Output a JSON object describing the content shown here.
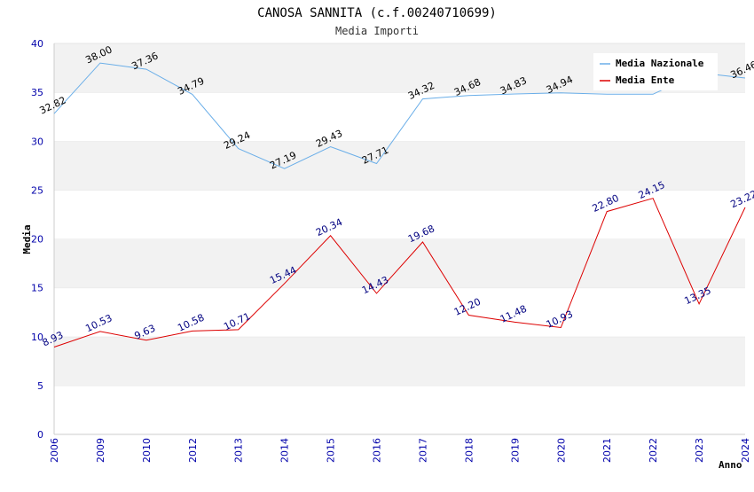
{
  "chart_data": {
    "type": "line",
    "title": "CANOSA SANNITA (c.f.00240710699)",
    "subtitle": "Media Importi",
    "xlabel": "Anno",
    "ylabel": "Media",
    "ylim": [
      0,
      40
    ],
    "yticks": [
      0,
      5,
      10,
      15,
      20,
      25,
      30,
      35,
      40
    ],
    "grid": true,
    "legend_position": "top-right",
    "categories": [
      "2006",
      "2009",
      "2010",
      "2012",
      "2013",
      "2014",
      "2015",
      "2016",
      "2017",
      "2018",
      "2019",
      "2020",
      "2021",
      "2022",
      "2023",
      "2024"
    ],
    "series": [
      {
        "name": "Media Nazionale",
        "color": "#6aaee8",
        "values": [
          32.82,
          38.0,
          37.36,
          34.79,
          29.24,
          27.19,
          29.43,
          27.71,
          34.32,
          34.68,
          34.83,
          34.94,
          34.8,
          34.8,
          37.0,
          36.46
        ],
        "labels": [
          "32.82",
          "38.00",
          "37.36",
          "34.79",
          "29.24",
          "27.19",
          "29.43",
          "27.71",
          "34.32",
          "34.68",
          "34.83",
          "34.94",
          "",
          "",
          "",
          "36.46"
        ]
      },
      {
        "name": "Media Ente",
        "color": "#dd0000",
        "values": [
          8.93,
          10.53,
          9.63,
          10.58,
          10.71,
          15.44,
          20.34,
          14.43,
          19.68,
          12.2,
          11.48,
          10.93,
          22.8,
          24.15,
          13.35,
          23.22
        ],
        "labels": [
          "8.93",
          "10.53",
          "9.63",
          "10.58",
          "10.71",
          "15.44",
          "20.34",
          "14.43",
          "19.68",
          "12.20",
          "11.48",
          "10.93",
          "22.80",
          "24.15",
          "13.35",
          "23.22"
        ]
      }
    ]
  }
}
